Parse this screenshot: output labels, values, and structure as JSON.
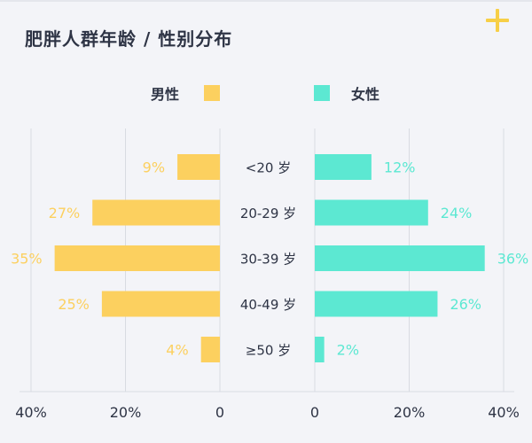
{
  "title": "肥胖人群年龄 / 性别分布",
  "add_icon": "plus-icon",
  "colors": {
    "male": "#fcd05f",
    "female": "#5ce8d2",
    "grid": "#d8dbe2",
    "text": "#2e3445"
  },
  "chart_data": {
    "type": "bar",
    "orientation": "horizontal-butterfly",
    "title": "肥胖人群年龄 / 性别分布",
    "categories": [
      "<20 岁",
      "20-29 岁",
      "30-39 岁",
      "40-49 岁",
      "≥50 岁"
    ],
    "series": [
      {
        "name": "男性",
        "values": [
          9,
          27,
          35,
          25,
          4
        ],
        "labels": [
          "9%",
          "27%",
          "35%",
          "25%",
          "4%"
        ]
      },
      {
        "name": "女性",
        "values": [
          12,
          24,
          36,
          26,
          2
        ],
        "labels": [
          "12%",
          "24%",
          "36%",
          "26%",
          "2%"
        ]
      }
    ],
    "axis_ticks_left": [
      "40%",
      "20%",
      "0"
    ],
    "axis_ticks_right": [
      "0",
      "20%",
      "40%"
    ],
    "xlim": [
      0,
      40
    ],
    "grid": true,
    "legend_position": "top"
  }
}
